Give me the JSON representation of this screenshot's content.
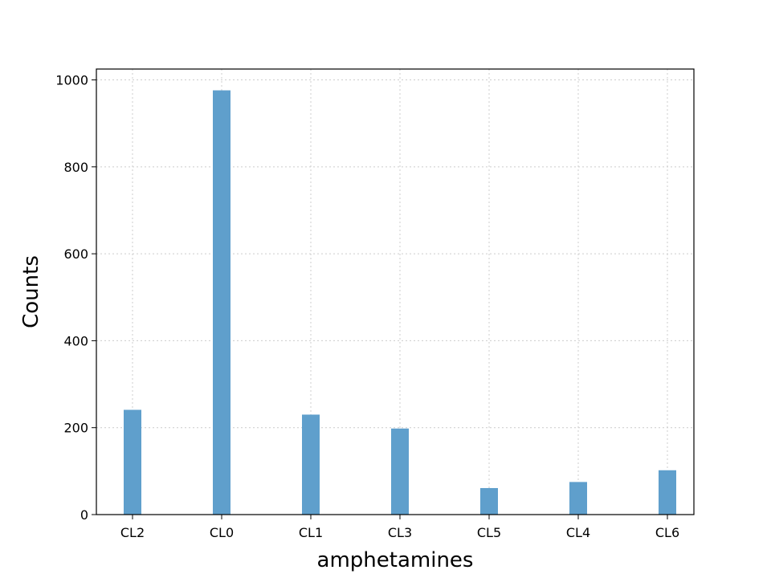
{
  "chart_data": {
    "type": "bar",
    "title": "",
    "xlabel": "amphetamines",
    "ylabel": "Counts",
    "categories": [
      "CL2",
      "CL0",
      "CL1",
      "CL3",
      "CL5",
      "CL4",
      "CL6"
    ],
    "values": [
      241,
      976,
      230,
      198,
      61,
      75,
      102
    ],
    "ylim": [
      0,
      1025
    ],
    "yticks": [
      0,
      200,
      400,
      600,
      800,
      1000
    ],
    "grid": true,
    "colors": {
      "bar": "#5f9fcc",
      "axes": "#000000",
      "grid": "#cccccc"
    }
  }
}
